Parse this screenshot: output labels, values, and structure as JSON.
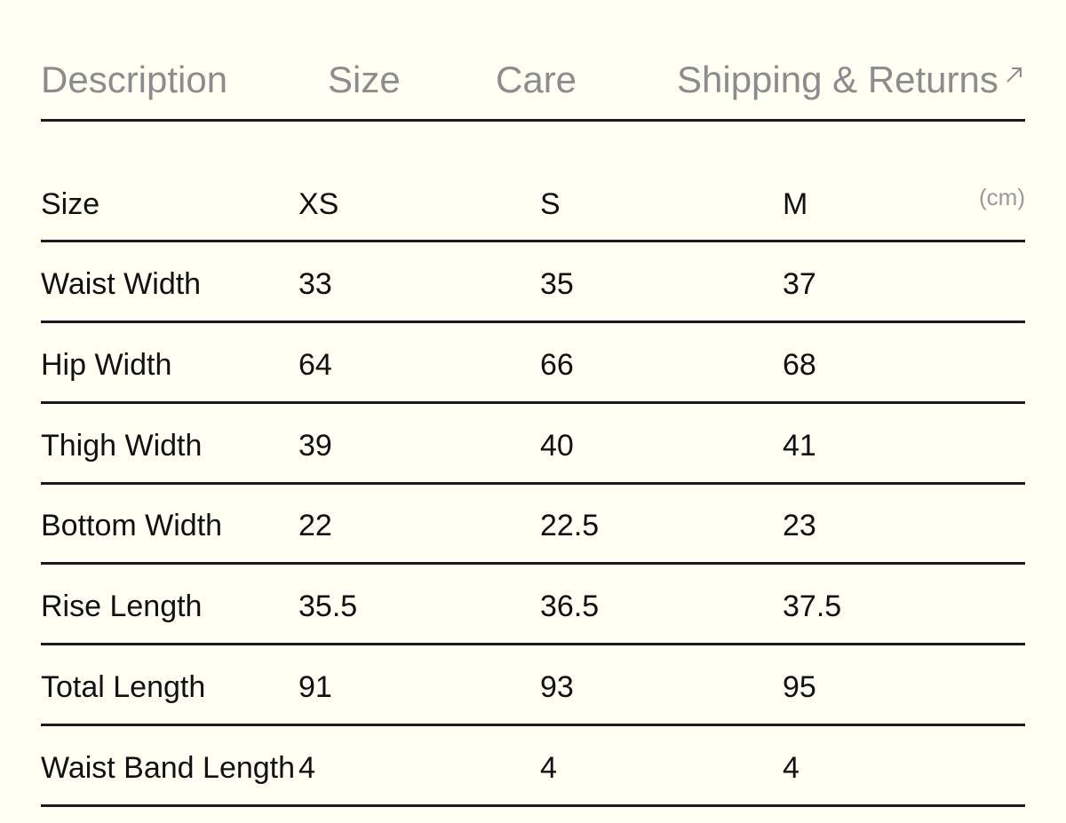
{
  "tabs": [
    "Description",
    "Size",
    "Care",
    "Shipping & Returns"
  ],
  "table": {
    "unit": "(cm)",
    "header": [
      "Size",
      "XS",
      "S",
      "M"
    ],
    "rows": [
      [
        "Waist Width",
        "33",
        "35",
        "37"
      ],
      [
        "Hip Width",
        "64",
        "66",
        "68"
      ],
      [
        "Thigh Width",
        "39",
        "40",
        "41"
      ],
      [
        "Bottom Width",
        "22",
        "22.5",
        "23"
      ],
      [
        "Rise Length",
        "35.5",
        "36.5",
        "37.5"
      ],
      [
        "Total Length",
        "91",
        "93",
        "95"
      ],
      [
        "Waist Band Length",
        "4",
        "4",
        "4"
      ]
    ]
  }
}
